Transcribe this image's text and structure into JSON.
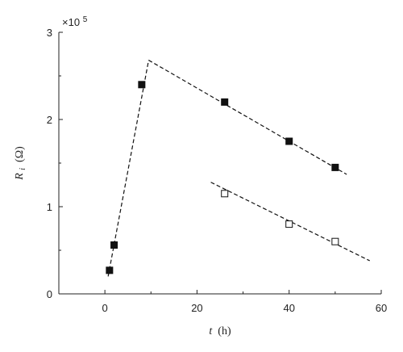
{
  "chart_data": {
    "type": "scatter",
    "xlabel_var": "t",
    "xlabel_unit": " (h)",
    "ylabel_var": "R",
    "ylabel_sub": "i",
    "ylabel_unit": " (Ω)",
    "y_multiplier": {
      "base": "×10",
      "exp": "5"
    },
    "xlim": [
      -10,
      60
    ],
    "ylim": [
      0,
      3
    ],
    "xticks": [
      0,
      20,
      40,
      60
    ],
    "yticks": [
      0,
      1,
      2,
      3
    ],
    "grid": false,
    "series": [
      {
        "marker": "filled-square",
        "points": [
          [
            1,
            0.27
          ],
          [
            2,
            0.56
          ],
          [
            8,
            2.4
          ],
          [
            26,
            2.2
          ],
          [
            40,
            1.75
          ],
          [
            50,
            1.45
          ]
        ]
      },
      {
        "marker": "open-square",
        "points": [
          [
            26,
            1.15
          ],
          [
            40,
            0.8
          ],
          [
            50,
            0.6
          ]
        ]
      }
    ],
    "fit_lines": [
      {
        "style": "dashed",
        "from": [
          0.7,
          0.2
        ],
        "to": [
          9.5,
          2.68
        ]
      },
      {
        "style": "dashed",
        "from": [
          9.5,
          2.68
        ],
        "to": [
          52.5,
          1.37
        ]
      },
      {
        "style": "dashed",
        "from": [
          23,
          1.28
        ],
        "to": [
          57.5,
          0.38
        ]
      }
    ],
    "colors": {
      "axis": "#222222",
      "marker": "#111111",
      "line": "#111111"
    }
  }
}
